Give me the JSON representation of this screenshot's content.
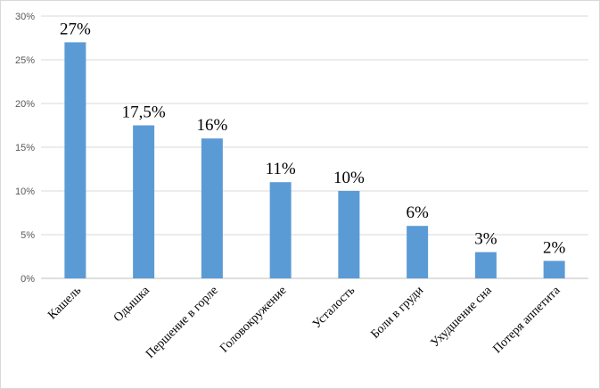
{
  "chart_data": {
    "type": "bar",
    "categories": [
      "Кашель",
      "Одышка",
      "Першение в горле",
      "Головокружение",
      "Усталость",
      "Боли в груди",
      "Ухудшение сна",
      "Потеря аппетита"
    ],
    "values": [
      27,
      17.5,
      16,
      11,
      10,
      6,
      3,
      2
    ],
    "data_labels": [
      "27%",
      "17,5%",
      "16%",
      "11%",
      "10%",
      "6%",
      "3%",
      "2%"
    ],
    "y_ticks": [
      "0%",
      "5%",
      "10%",
      "15%",
      "20%",
      "25%",
      "30%"
    ],
    "ylim": [
      0,
      30
    ],
    "y_step": 5,
    "title": "",
    "xlabel": "",
    "ylabel": "",
    "grid": true,
    "legend": "none",
    "colors": {
      "bar": "#5b9bd5",
      "grid": "#d9d9d9",
      "axis": "#bfbfbf"
    }
  }
}
